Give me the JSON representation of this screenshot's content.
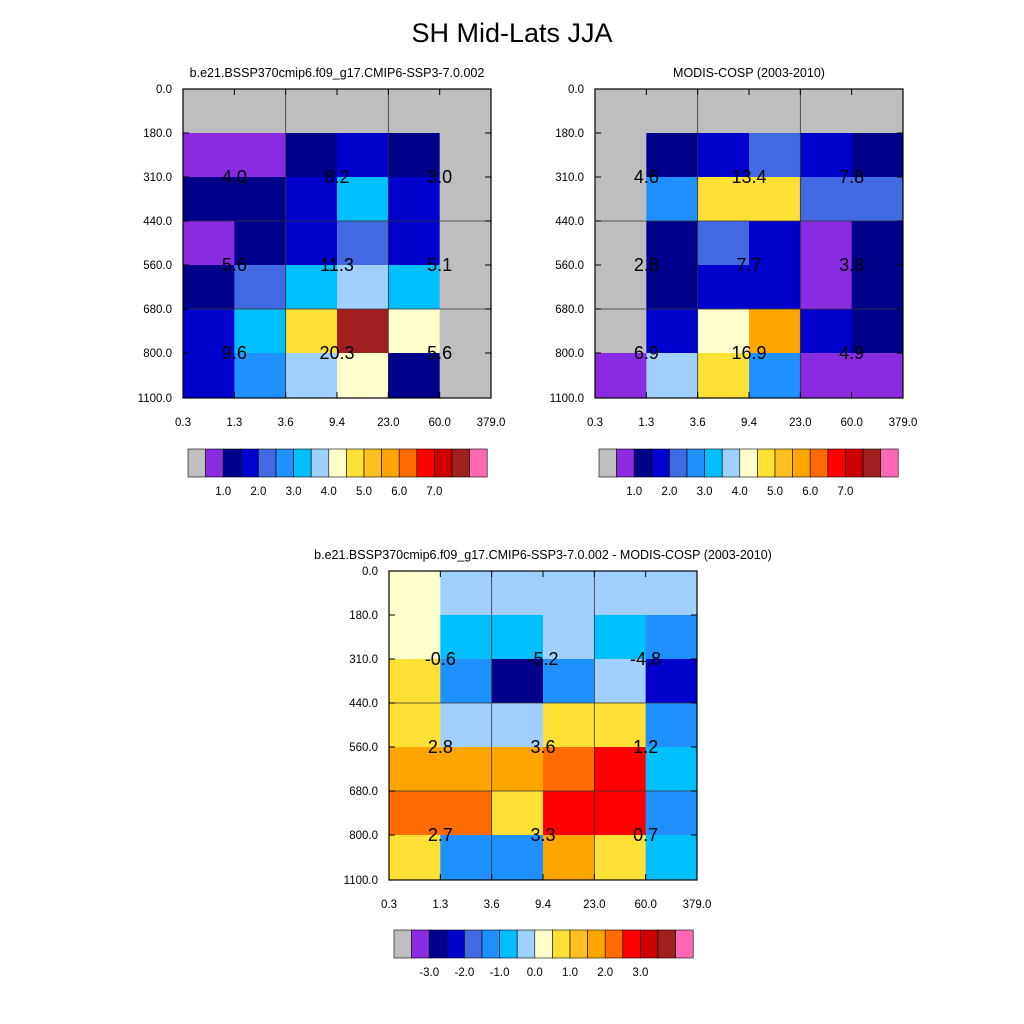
{
  "title": "SH Mid-Lats JJA",
  "colormaps": {
    "absolute": {
      "colors": [
        "#bebebe",
        "#8a2be2",
        "#00008b",
        "#0000cd",
        "#4169e1",
        "#1e90ff",
        "#00bfff",
        "#a0d0ff",
        "#ffffcc",
        "#ffe034",
        "#ffc020",
        "#ffa500",
        "#ff6b00",
        "#ff0000",
        "#cc0000",
        "#a02020",
        "#ff69b4"
      ],
      "tick_labels": [
        "1.0",
        "2.0",
        "3.0",
        "4.0",
        "5.0",
        "6.0",
        "7.0"
      ],
      "tick_after_box": [
        2,
        4,
        6,
        8,
        10,
        12,
        14
      ]
    },
    "difference": {
      "colors": [
        "#bebebe",
        "#8a2be2",
        "#00008b",
        "#0000cd",
        "#4169e1",
        "#1e90ff",
        "#00bfff",
        "#a0d0ff",
        "#ffffcc",
        "#ffe034",
        "#ffc020",
        "#ffa500",
        "#ff6b00",
        "#ff0000",
        "#cc0000",
        "#a02020",
        "#ff69b4"
      ],
      "tick_labels": [
        "-3.0",
        "-2.0",
        "-1.0",
        "0.0",
        "1.0",
        "2.0",
        "3.0"
      ],
      "tick_after_box": [
        2,
        4,
        6,
        8,
        10,
        12,
        14
      ]
    }
  },
  "chart_data": [
    {
      "type": "heatmap",
      "subtitle": "b.e21.BSSP370cmip6.f09_g17.CMIP6-SSP3-7.0.002",
      "colormap": "absolute",
      "x_tick_labels": [
        "0.3",
        "1.3",
        "3.6",
        "9.4",
        "23.0",
        "60.0",
        "379.0"
      ],
      "y_tick_labels": [
        "0.0",
        "180.0",
        "310.0",
        "440.0",
        "560.0",
        "680.0",
        "800.0",
        "1100.0"
      ],
      "cells": [
        [
          0,
          0,
          0,
          0,
          0,
          0
        ],
        [
          1,
          1,
          2,
          3,
          2,
          0
        ],
        [
          2,
          2,
          3,
          6,
          3,
          0
        ],
        [
          1,
          2,
          3,
          4,
          3,
          0
        ],
        [
          2,
          4,
          6,
          7,
          6,
          0
        ],
        [
          3,
          6,
          9,
          15,
          8,
          0
        ],
        [
          3,
          5,
          7,
          8,
          2,
          0
        ]
      ],
      "block_labels": [
        [
          "4.0",
          "8.2",
          "3.0"
        ],
        [
          "5.6",
          "11.3",
          "5.1"
        ],
        [
          "9.6",
          "20.3",
          "5.6"
        ]
      ]
    },
    {
      "type": "heatmap",
      "subtitle": "MODIS-COSP (2003-2010)",
      "colormap": "absolute",
      "x_tick_labels": [
        "0.3",
        "1.3",
        "3.6",
        "9.4",
        "23.0",
        "60.0",
        "379.0"
      ],
      "y_tick_labels": [
        "0.0",
        "180.0",
        "310.0",
        "440.0",
        "560.0",
        "680.0",
        "800.0",
        "1100.0"
      ],
      "cells": [
        [
          0,
          0,
          0,
          0,
          0,
          0
        ],
        [
          0,
          2,
          3,
          4,
          3,
          2
        ],
        [
          0,
          5,
          9,
          9,
          4,
          4
        ],
        [
          0,
          2,
          4,
          3,
          1,
          2
        ],
        [
          0,
          2,
          3,
          3,
          1,
          2
        ],
        [
          0,
          3,
          8,
          11,
          3,
          2
        ],
        [
          1,
          7,
          9,
          5,
          1,
          1
        ]
      ],
      "block_labels": [
        [
          "4.6",
          "13.4",
          "7.8"
        ],
        [
          "2.8",
          "7.7",
          "3.8"
        ],
        [
          "6.9",
          "16.9",
          "4.9"
        ]
      ]
    },
    {
      "type": "heatmap",
      "subtitle": "b.e21.BSSP370cmip6.f09_g17.CMIP6-SSP3-7.0.002 - MODIS-COSP (2003-2010)",
      "colormap": "difference",
      "x_tick_labels": [
        "0.3",
        "1.3",
        "3.6",
        "9.4",
        "23.0",
        "60.0",
        "379.0"
      ],
      "y_tick_labels": [
        "0.0",
        "180.0",
        "310.0",
        "440.0",
        "560.0",
        "680.0",
        "800.0",
        "1100.0"
      ],
      "cells": [
        [
          8,
          7,
          7,
          7,
          7,
          7
        ],
        [
          8,
          6,
          6,
          7,
          6,
          5
        ],
        [
          9,
          5,
          2,
          5,
          7,
          3
        ],
        [
          9,
          7,
          7,
          9,
          9,
          5
        ],
        [
          11,
          11,
          11,
          12,
          13,
          6
        ],
        [
          12,
          12,
          9,
          13,
          13,
          5
        ],
        [
          9,
          5,
          5,
          11,
          9,
          6
        ]
      ],
      "block_labels": [
        [
          "-0.6",
          "-5.2",
          "-4.8"
        ],
        [
          "2.8",
          "3.6",
          "1.2"
        ],
        [
          "2.7",
          "3.3",
          "0.7"
        ]
      ]
    }
  ]
}
